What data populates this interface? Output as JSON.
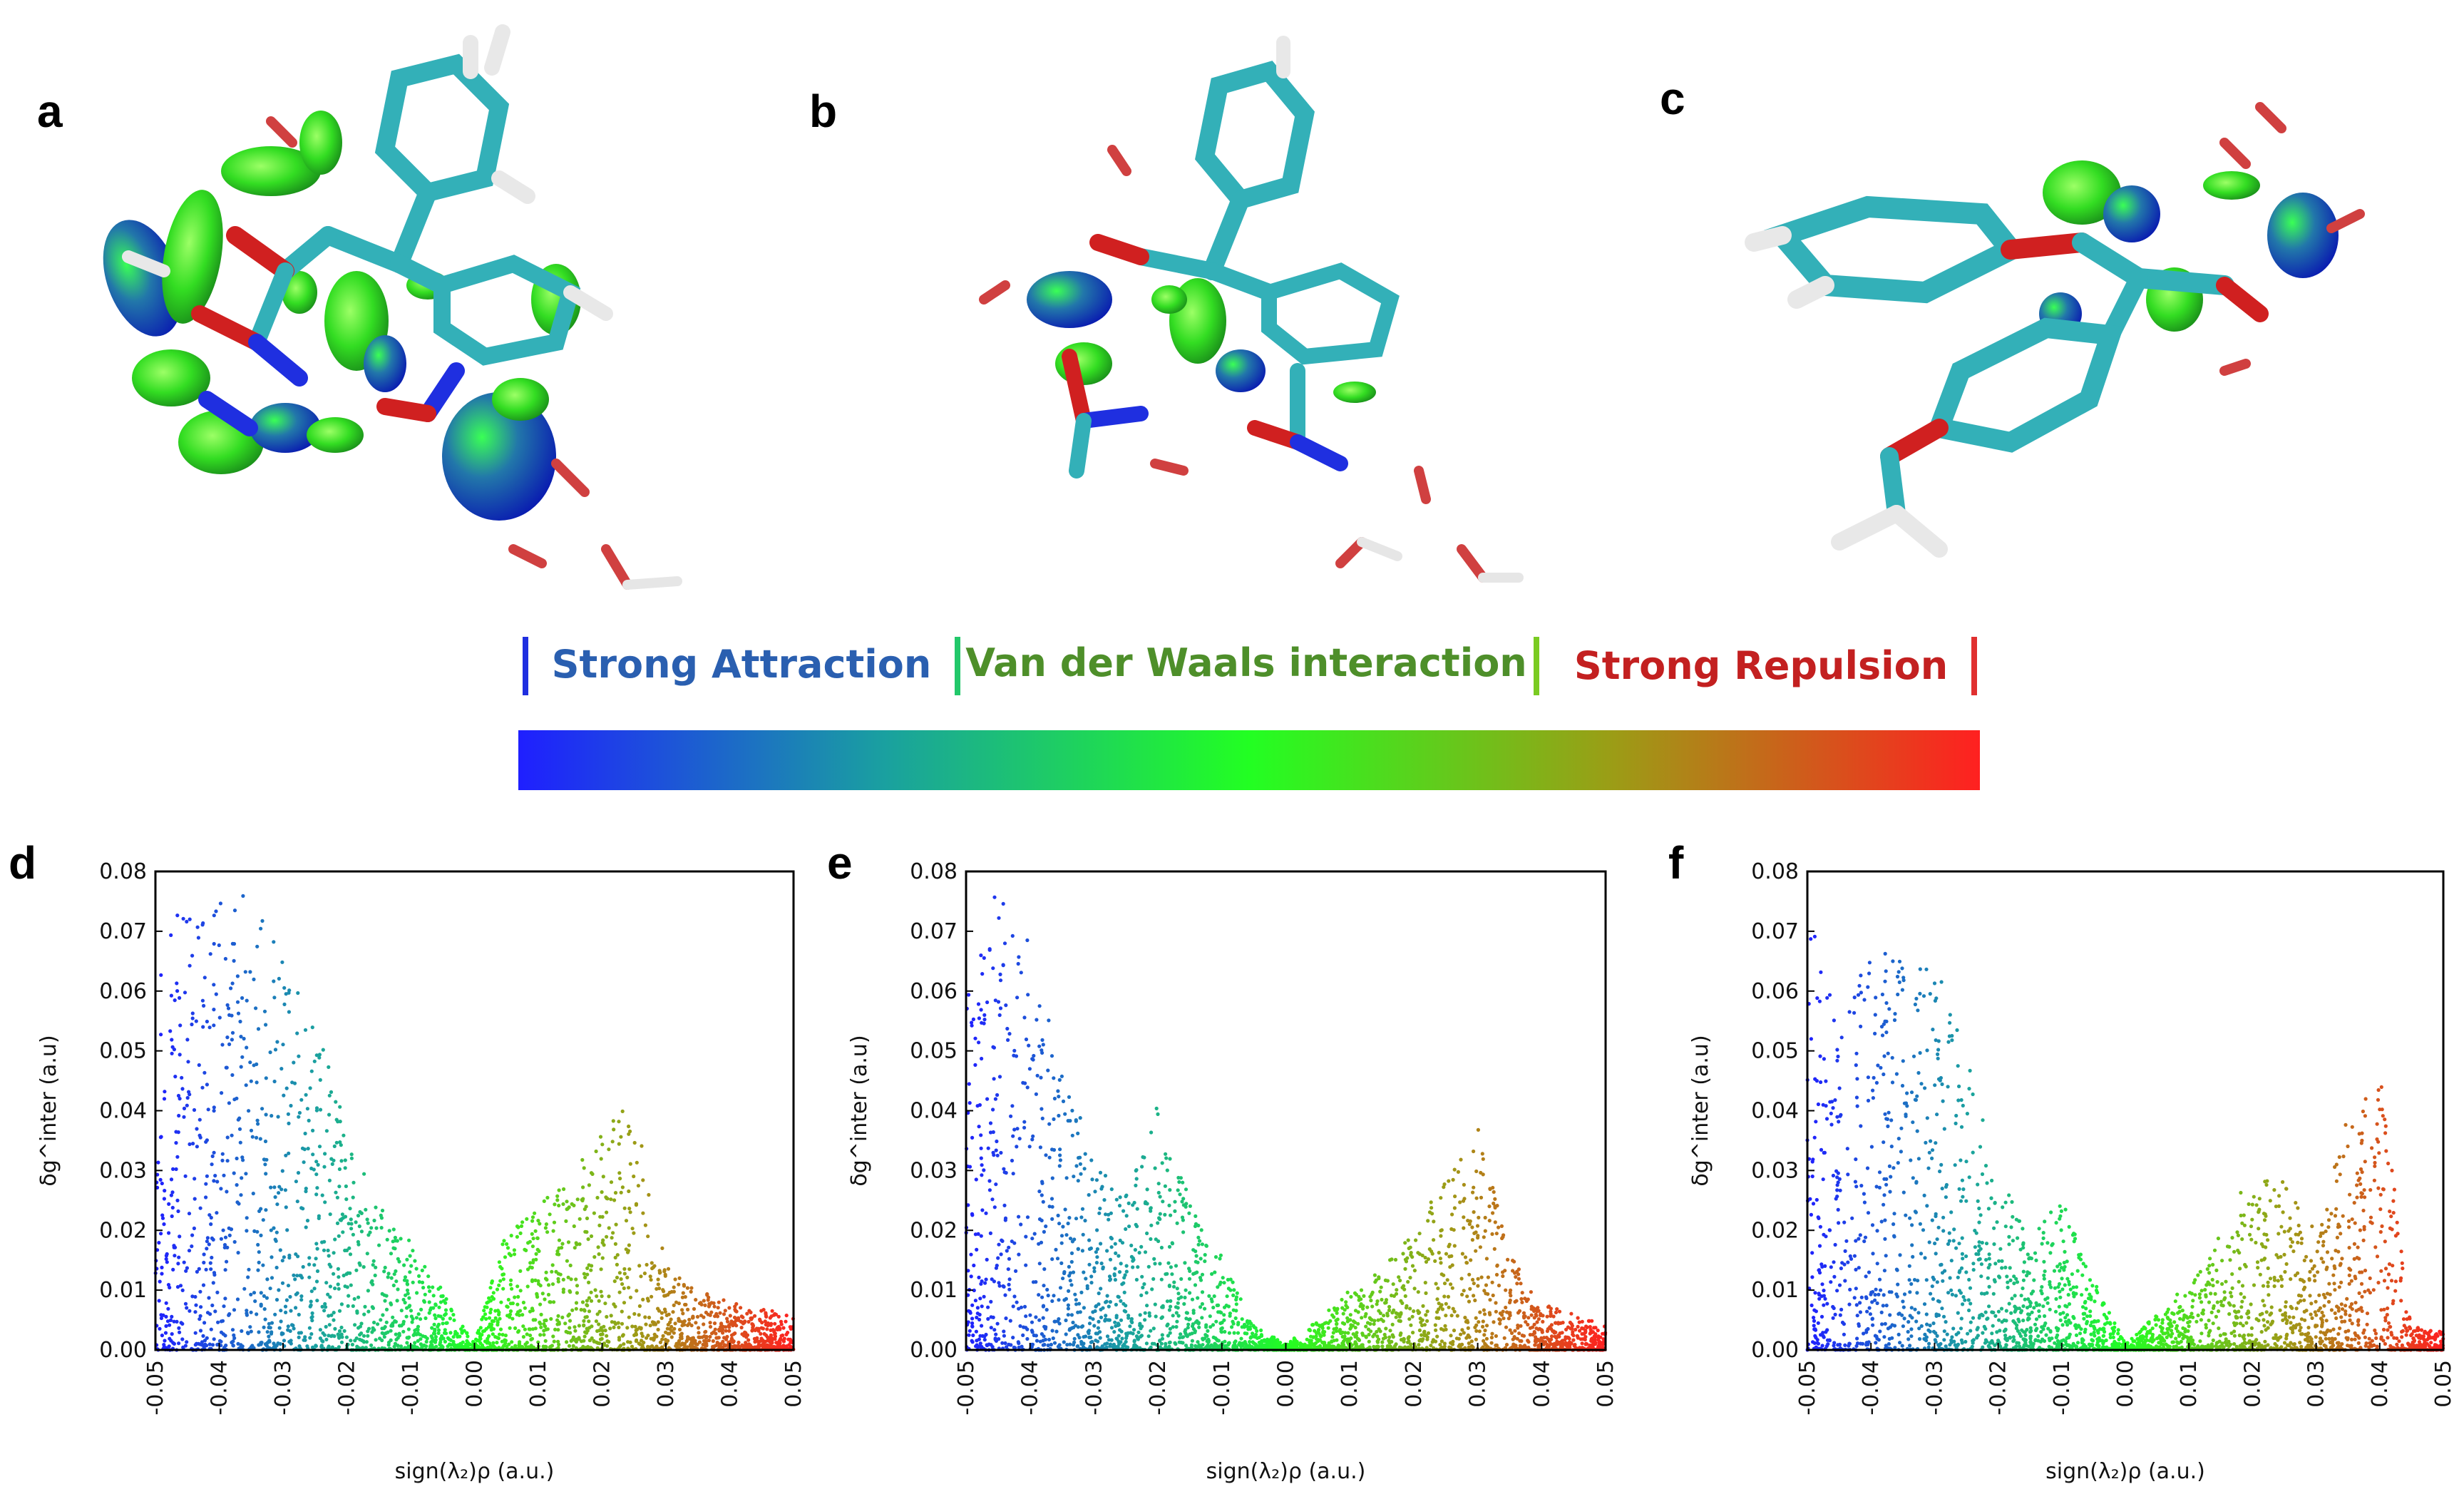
{
  "panels_top": [
    "a",
    "b",
    "c"
  ],
  "colorbar": {
    "labels": [
      "Strong Attraction",
      "Van der Waals interaction",
      "Strong Repulsion"
    ],
    "colors": [
      "#2a5fb0",
      "#4e8f2a",
      "#c32020"
    ],
    "gradient": [
      "#1f1fff",
      "#1aa0a0",
      "#22ff22",
      "#9c9c16",
      "#ff2020"
    ]
  },
  "chart_data": [
    {
      "panel": "d",
      "type": "scatter",
      "xlabel": "sign(λ₂)ρ (a.u.)",
      "ylabel": "δg^inter (a.u)",
      "xlim": [
        -0.05,
        0.05
      ],
      "ylim": [
        0,
        0.08
      ],
      "xticks": [
        "-0.05",
        "-0.04",
        "-0.03",
        "-0.02",
        "-0.01",
        "0.00",
        "0.01",
        "0.02",
        "0.03",
        "0.04",
        "0.05"
      ],
      "yticks": [
        "0.00",
        "0.01",
        "0.02",
        "0.03",
        "0.04",
        "0.05",
        "0.06",
        "0.07",
        "0.08"
      ],
      "envelope": [
        [
          -0.05,
          0.07
        ],
        [
          -0.045,
          0.074
        ],
        [
          -0.04,
          0.078
        ],
        [
          -0.035,
          0.076
        ],
        [
          -0.03,
          0.066
        ],
        [
          -0.025,
          0.055
        ],
        [
          -0.02,
          0.038
        ],
        [
          -0.015,
          0.025
        ],
        [
          -0.01,
          0.018
        ],
        [
          -0.005,
          0.01
        ],
        [
          0.0,
          0.001
        ],
        [
          0.005,
          0.02
        ],
        [
          0.01,
          0.025
        ],
        [
          0.015,
          0.028
        ],
        [
          0.02,
          0.038
        ],
        [
          0.025,
          0.041
        ],
        [
          0.03,
          0.014
        ],
        [
          0.035,
          0.01
        ],
        [
          0.04,
          0.008
        ],
        [
          0.045,
          0.007
        ],
        [
          0.05,
          0.006
        ]
      ]
    },
    {
      "panel": "e",
      "type": "scatter",
      "xlabel": "sign(λ₂)ρ (a.u.)",
      "ylabel": "δg^inter (a.u)",
      "xlim": [
        -0.05,
        0.05
      ],
      "ylim": [
        0,
        0.08
      ],
      "xticks": [
        "-0.05",
        "-0.04",
        "-0.03",
        "-0.02",
        "-0.01",
        "0.00",
        "0.01",
        "0.02",
        "0.03",
        "0.04",
        "0.05"
      ],
      "yticks": [
        "0.00",
        "0.01",
        "0.02",
        "0.03",
        "0.04",
        "0.05",
        "0.06",
        "0.07",
        "0.08"
      ],
      "envelope": [
        [
          -0.05,
          0.06
        ],
        [
          -0.045,
          0.078
        ],
        [
          -0.04,
          0.07
        ],
        [
          -0.035,
          0.048
        ],
        [
          -0.03,
          0.032
        ],
        [
          -0.025,
          0.026
        ],
        [
          -0.02,
          0.041
        ],
        [
          -0.015,
          0.025
        ],
        [
          -0.01,
          0.016
        ],
        [
          -0.005,
          0.004
        ],
        [
          0.0,
          0.001
        ],
        [
          0.005,
          0.005
        ],
        [
          0.01,
          0.01
        ],
        [
          0.015,
          0.014
        ],
        [
          0.02,
          0.02
        ],
        [
          0.025,
          0.03
        ],
        [
          0.03,
          0.038
        ],
        [
          0.035,
          0.016
        ],
        [
          0.04,
          0.008
        ],
        [
          0.045,
          0.006
        ],
        [
          0.05,
          0.004
        ]
      ]
    },
    {
      "panel": "f",
      "type": "scatter",
      "xlabel": "sign(λ₂)ρ (a.u.)",
      "ylabel": "δg^inter (a.u)",
      "xlim": [
        -0.05,
        0.05
      ],
      "ylim": [
        0,
        0.08
      ],
      "xticks": [
        "-0.05",
        "-0.04",
        "-0.03",
        "-0.02",
        "-0.01",
        "0.00",
        "0.01",
        "0.02",
        "0.03",
        "0.04",
        "0.05"
      ],
      "yticks": [
        "0.00",
        "0.01",
        "0.02",
        "0.03",
        "0.04",
        "0.05",
        "0.06",
        "0.07",
        "0.08"
      ],
      "envelope": [
        [
          -0.05,
          0.075
        ],
        [
          -0.045,
          0.056
        ],
        [
          -0.04,
          0.068
        ],
        [
          -0.035,
          0.066
        ],
        [
          -0.03,
          0.065
        ],
        [
          -0.025,
          0.05
        ],
        [
          -0.02,
          0.03
        ],
        [
          -0.015,
          0.018
        ],
        [
          -0.01,
          0.026
        ],
        [
          -0.005,
          0.012
        ],
        [
          0.0,
          0.001
        ],
        [
          0.005,
          0.006
        ],
        [
          0.01,
          0.012
        ],
        [
          0.015,
          0.02
        ],
        [
          0.02,
          0.03
        ],
        [
          0.025,
          0.028
        ],
        [
          0.03,
          0.02
        ],
        [
          0.035,
          0.04
        ],
        [
          0.04,
          0.047
        ],
        [
          0.045,
          0.004
        ],
        [
          0.05,
          0.003
        ]
      ]
    }
  ]
}
